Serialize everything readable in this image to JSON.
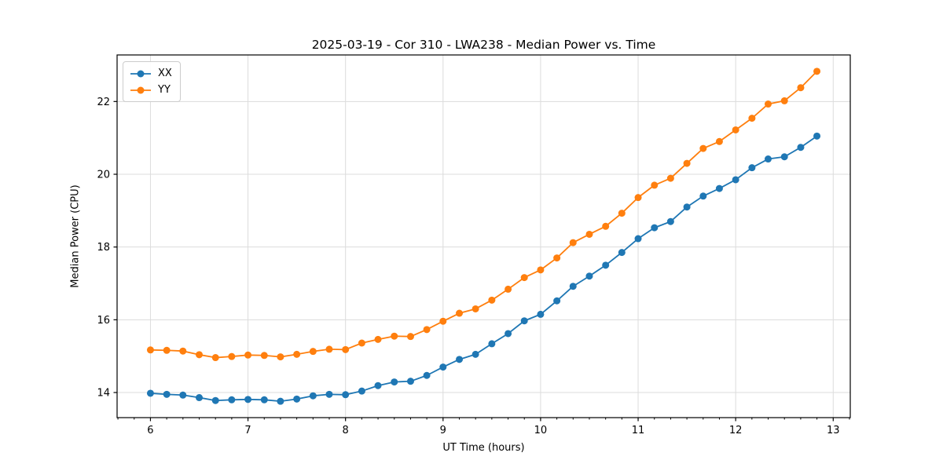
{
  "chart_data": {
    "type": "line",
    "title": "2025-03-19 - Cor 310 - LWA238 - Median Power vs. Time",
    "xlabel": "UT Time (hours)",
    "ylabel": "Median Power (CPU)",
    "xlim": [
      5.658,
      13.175
    ],
    "ylim": [
      13.31,
      23.28
    ],
    "x_major_ticks": [
      6,
      7,
      8,
      9,
      10,
      11,
      12,
      13
    ],
    "x_minor_step": 0.1667,
    "y_ticks": [
      14,
      16,
      18,
      20,
      22
    ],
    "grid": true,
    "grid_color": "#dcdcdc",
    "spine_color": "#000000",
    "legend_position": "upper-left",
    "marker": "circle",
    "x": [
      6.0,
      6.167,
      6.333,
      6.5,
      6.667,
      6.833,
      7.0,
      7.167,
      7.333,
      7.5,
      7.667,
      7.833,
      8.0,
      8.167,
      8.333,
      8.5,
      8.667,
      8.833,
      9.0,
      9.167,
      9.333,
      9.5,
      9.667,
      9.833,
      10.0,
      10.167,
      10.333,
      10.5,
      10.667,
      10.833,
      11.0,
      11.167,
      11.333,
      11.5,
      11.667,
      11.833,
      12.0,
      12.167,
      12.333,
      12.5,
      12.667,
      12.833
    ],
    "series": [
      {
        "name": "XX",
        "color": "#1f77b4",
        "values": [
          13.98,
          13.95,
          13.93,
          13.86,
          13.78,
          13.8,
          13.81,
          13.8,
          13.76,
          13.82,
          13.91,
          13.95,
          13.94,
          14.04,
          14.19,
          14.29,
          14.31,
          14.47,
          14.7,
          14.91,
          15.05,
          15.34,
          15.62,
          15.97,
          16.15,
          16.52,
          16.92,
          17.2,
          17.5,
          17.85,
          18.23,
          18.53,
          18.7,
          19.1,
          19.4,
          19.61,
          19.85,
          20.18,
          20.42,
          20.48,
          20.74,
          21.05
        ]
      },
      {
        "name": "YY",
        "color": "#ff7f0e",
        "values": [
          15.17,
          15.16,
          15.14,
          15.04,
          14.96,
          14.99,
          15.03,
          15.02,
          14.98,
          15.05,
          15.13,
          15.19,
          15.18,
          15.36,
          15.46,
          15.55,
          15.54,
          15.73,
          15.96,
          16.18,
          16.3,
          16.54,
          16.84,
          17.16,
          17.37,
          17.7,
          18.12,
          18.35,
          18.57,
          18.93,
          19.36,
          19.7,
          19.89,
          20.3,
          20.71,
          20.9,
          21.22,
          21.54,
          21.93,
          22.02,
          22.38,
          22.83
        ]
      }
    ]
  }
}
